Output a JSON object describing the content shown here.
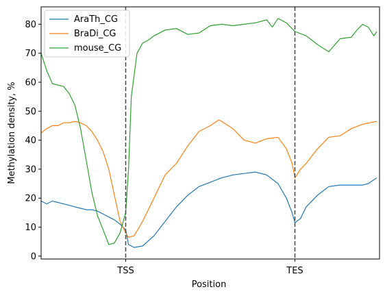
{
  "chart_data": {
    "type": "line",
    "title": "",
    "xlabel": "Position",
    "ylabel": "Methylation density, %",
    "x_range": [
      -1.5,
      4.5
    ],
    "ylim": [
      -1,
      86
    ],
    "x_ticks": [
      {
        "value": 0,
        "label": "TSS"
      },
      {
        "value": 3,
        "label": "TES"
      }
    ],
    "y_ticks": [
      0,
      10,
      20,
      30,
      40,
      50,
      60,
      70,
      80
    ],
    "vlines": [
      0,
      3
    ],
    "vline_color": "#444444",
    "grid": false,
    "legend": "top-left",
    "series": [
      {
        "name": "AraTh_CG",
        "color": "#1f77b4",
        "x": [
          -1.5,
          -1.4,
          -1.3,
          -1.2,
          -1.1,
          -1.0,
          -0.9,
          -0.8,
          -0.7,
          -0.6,
          -0.5,
          -0.4,
          -0.3,
          -0.2,
          -0.1,
          0.0,
          0.05,
          0.15,
          0.3,
          0.5,
          0.7,
          0.9,
          1.1,
          1.3,
          1.5,
          1.7,
          1.9,
          2.1,
          2.3,
          2.5,
          2.7,
          2.85,
          2.95,
          3.0,
          3.1,
          3.2,
          3.4,
          3.6,
          3.8,
          4.0,
          4.2,
          4.3,
          4.45
        ],
        "y": [
          19,
          18,
          19,
          18.5,
          18,
          17.5,
          17,
          16.5,
          16,
          16,
          15.5,
          14.5,
          13.5,
          12.5,
          11,
          9,
          4,
          3,
          3.5,
          7,
          12,
          17,
          21,
          24,
          25.5,
          27,
          28,
          28.5,
          29,
          28,
          25,
          20,
          15,
          11.5,
          13,
          17,
          21,
          24,
          24.5,
          24.5,
          24.5,
          25,
          27
        ]
      },
      {
        "name": "BraDi_CG",
        "color": "#ff7f0e",
        "x": [
          -1.5,
          -1.4,
          -1.3,
          -1.2,
          -1.1,
          -1.0,
          -0.9,
          -0.8,
          -0.7,
          -0.6,
          -0.5,
          -0.4,
          -0.3,
          -0.2,
          -0.1,
          0.0,
          0.05,
          0.15,
          0.3,
          0.5,
          0.7,
          0.9,
          1.1,
          1.3,
          1.5,
          1.65,
          1.7,
          1.9,
          2.1,
          2.3,
          2.5,
          2.7,
          2.85,
          2.95,
          3.0,
          3.1,
          3.2,
          3.4,
          3.6,
          3.8,
          4.0,
          4.2,
          4.45
        ],
        "y": [
          42.5,
          44,
          45,
          45,
          46,
          46,
          46.5,
          46,
          45,
          43,
          40,
          36,
          30,
          21,
          12,
          8,
          6.5,
          7,
          12,
          20,
          28,
          32,
          38,
          43,
          45,
          47,
          46.5,
          44,
          40,
          39,
          40.5,
          41,
          37,
          32,
          27,
          30,
          32,
          37,
          41,
          41.5,
          44,
          45.5,
          46.5
        ]
      },
      {
        "name": "mouse_CG",
        "color": "#2ca02c",
        "x": [
          -1.5,
          -1.4,
          -1.3,
          -1.2,
          -1.1,
          -1.0,
          -0.9,
          -0.8,
          -0.7,
          -0.6,
          -0.5,
          -0.4,
          -0.3,
          -0.2,
          -0.1,
          0.0,
          0.05,
          0.1,
          0.2,
          0.3,
          0.4,
          0.5,
          0.7,
          0.9,
          1.1,
          1.3,
          1.5,
          1.7,
          1.9,
          2.1,
          2.3,
          2.5,
          2.6,
          2.7,
          2.85,
          3.0,
          3.2,
          3.4,
          3.6,
          3.8,
          4.0,
          4.1,
          4.2,
          4.3,
          4.4,
          4.45
        ],
        "y": [
          70,
          64,
          59.5,
          59,
          58.5,
          56,
          52,
          44,
          33,
          22,
          14,
          9,
          4,
          4.5,
          8,
          15,
          30,
          55,
          70,
          73.5,
          74.5,
          76,
          78,
          78.5,
          76.5,
          77,
          79.5,
          80,
          79.5,
          80,
          80.5,
          81.5,
          79,
          82,
          80.5,
          77.5,
          76,
          73,
          70.5,
          75,
          75.5,
          78,
          80,
          79,
          76,
          77.5
        ]
      }
    ]
  }
}
